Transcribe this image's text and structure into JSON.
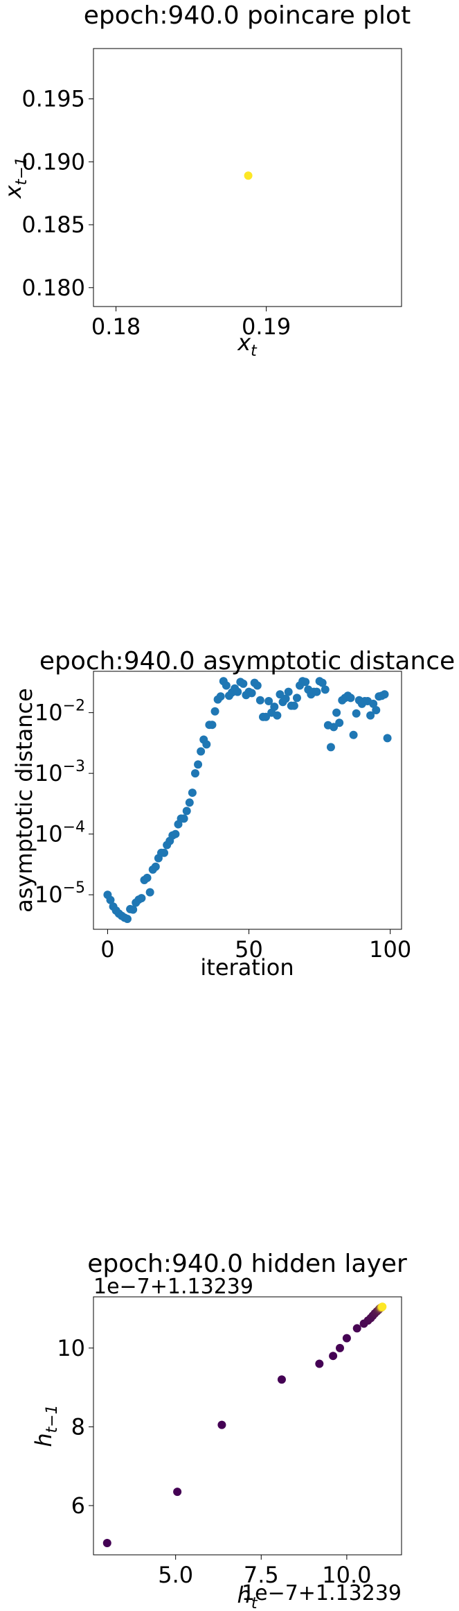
{
  "colors": {
    "scatter_point": "#1f77b4",
    "poincare_point": "#fde725",
    "viridis_low": "#440154",
    "viridis_high": "#fde725",
    "axes": "#000000",
    "background": "#ffffff"
  },
  "chart_data": [
    {
      "type": "scatter",
      "title": "epoch:940.0 poincare plot",
      "xlabel": "x",
      "xlabel_sub": "t",
      "ylabel": "x",
      "ylabel_sub": "t−1",
      "xlim": [
        0.1785,
        0.199
      ],
      "ylim": [
        0.1785,
        0.199
      ],
      "xticks": [
        0.18,
        0.19
      ],
      "xtick_labels": [
        "0.18",
        "0.19"
      ],
      "yticks": [
        0.18,
        0.185,
        0.19,
        0.195
      ],
      "ytick_labels": [
        "0.180",
        "0.185",
        "0.190",
        "0.195"
      ],
      "grid": false,
      "points": [
        {
          "x": 0.1888,
          "y": 0.1889
        }
      ]
    },
    {
      "type": "scatter",
      "title": "epoch:940.0 asymptotic distance",
      "xlabel": "iteration",
      "ylabel": "asymptotic distance",
      "yscale": "log",
      "xlim": [
        -5,
        104
      ],
      "ylim": [
        2.7e-06,
        0.048
      ],
      "xticks": [
        0,
        50,
        100
      ],
      "xtick_labels": [
        "0",
        "50",
        "100"
      ],
      "yticks": [
        1e-05,
        0.0001,
        0.001,
        0.01
      ],
      "ytick_labels": [
        {
          "base": "10",
          "exp": "−5"
        },
        {
          "base": "10",
          "exp": "−4"
        },
        {
          "base": "10",
          "exp": "−3"
        },
        {
          "base": "10",
          "exp": "−2"
        }
      ],
      "grid": false,
      "values": [
        1e-05,
        8.2e-06,
        6.4e-06,
        5.5e-06,
        4.9e-06,
        4.5e-06,
        4.2e-06,
        4e-06,
        5.8e-06,
        5.7e-06,
        7.4e-06,
        8.3e-06,
        8.8e-06,
        1.75e-05,
        1.9e-05,
        1.1e-05,
        2.6e-05,
        2.9e-05,
        4e-05,
        4.9e-05,
        4.9e-05,
        6.6e-05,
        7.7e-05,
        9.5e-05,
        0.0001,
        0.000145,
        0.00018,
        0.00018,
        0.00024,
        0.00033,
        0.00048,
        0.001,
        0.0014,
        0.0023,
        0.0036,
        0.003,
        0.0063,
        0.0063,
        0.0105,
        0.0165,
        0.0185,
        0.033,
        0.028,
        0.019,
        0.0215,
        0.025,
        0.022,
        0.032,
        0.03,
        0.0195,
        0.022,
        0.021,
        0.031,
        0.028,
        0.016,
        0.0085,
        0.0085,
        0.0155,
        0.01,
        0.0125,
        0.009,
        0.02,
        0.015,
        0.017,
        0.022,
        0.013,
        0.013,
        0.0175,
        0.028,
        0.033,
        0.032,
        0.024,
        0.02,
        0.022,
        0.022,
        0.033,
        0.031,
        0.024,
        0.0062,
        0.0027,
        0.0058,
        0.01,
        0.0068,
        0.016,
        0.0175,
        0.019,
        0.0175,
        0.0043,
        0.0097,
        0.016,
        0.014,
        0.0155,
        0.0155,
        0.009,
        0.014,
        0.011,
        0.0185,
        0.019,
        0.02,
        0.0038
      ]
    },
    {
      "type": "scatter",
      "title": "epoch:940.0 hidden layer",
      "offset_label": "1e−7+1.13239",
      "xlabel": "h",
      "xlabel_sub": "t",
      "ylabel": "h",
      "ylabel_sub": "t−1",
      "xlim": [
        2.6,
        11.6
      ],
      "ylim": [
        4.75,
        11.3
      ],
      "xticks": [
        5.0,
        7.5,
        10.0
      ],
      "xtick_labels": [
        "5.0",
        "7.5",
        "10.0"
      ],
      "yticks": [
        6,
        8,
        10
      ],
      "ytick_labels": [
        "6",
        "8",
        "10"
      ],
      "grid": false,
      "colormap": "viridis",
      "points": [
        {
          "x": 3.0,
          "y": 5.05,
          "c": 0.0
        },
        {
          "x": 5.05,
          "y": 6.35,
          "c": 0.0
        },
        {
          "x": 6.35,
          "y": 8.05,
          "c": 0.0
        },
        {
          "x": 8.1,
          "y": 9.2,
          "c": 0.0
        },
        {
          "x": 9.2,
          "y": 9.6,
          "c": 0.0
        },
        {
          "x": 9.6,
          "y": 9.8,
          "c": 0.0
        },
        {
          "x": 9.8,
          "y": 10.0,
          "c": 0.01
        },
        {
          "x": 10.0,
          "y": 10.25,
          "c": 0.01
        },
        {
          "x": 10.3,
          "y": 10.5,
          "c": 0.02
        },
        {
          "x": 10.5,
          "y": 10.62,
          "c": 0.03
        },
        {
          "x": 10.62,
          "y": 10.7,
          "c": 0.04
        },
        {
          "x": 10.7,
          "y": 10.76,
          "c": 0.05
        },
        {
          "x": 10.76,
          "y": 10.82,
          "c": 0.06
        },
        {
          "x": 10.82,
          "y": 10.88,
          "c": 0.08
        },
        {
          "x": 10.88,
          "y": 10.93,
          "c": 0.1
        },
        {
          "x": 10.93,
          "y": 10.97,
          "c": 0.15
        },
        {
          "x": 10.96,
          "y": 11.0,
          "c": 0.25
        },
        {
          "x": 10.99,
          "y": 11.02,
          "c": 0.45
        },
        {
          "x": 11.01,
          "y": 11.03,
          "c": 0.7
        },
        {
          "x": 11.03,
          "y": 11.04,
          "c": 0.9
        },
        {
          "x": 11.04,
          "y": 11.05,
          "c": 1.0
        }
      ]
    }
  ]
}
